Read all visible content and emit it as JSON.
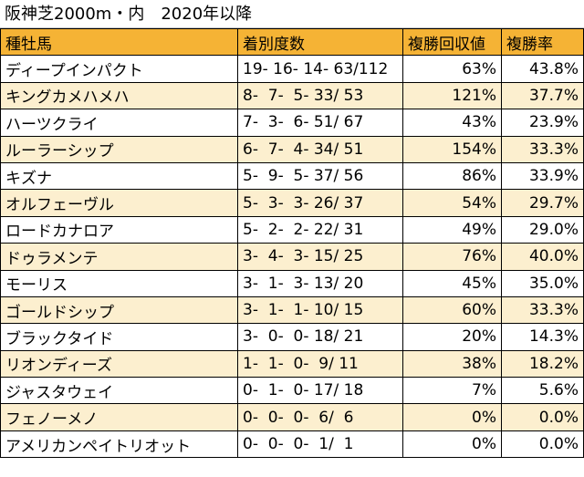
{
  "title": "阪神芝2000m・内　2020年以降",
  "columns": [
    "種牡馬",
    "着別度数",
    "複勝回収値",
    "複勝率"
  ],
  "rows": [
    {
      "sire": "ディープインパクト",
      "record": "19- 16- 14- 63/112",
      "return": "63%",
      "rate": "43.8%"
    },
    {
      "sire": "キングカメハメハ",
      "record": "8-  7-  5- 33/ 53",
      "return": "121%",
      "rate": "37.7%"
    },
    {
      "sire": "ハーツクライ",
      "record": "7-  3-  6- 51/ 67",
      "return": "43%",
      "rate": "23.9%"
    },
    {
      "sire": "ルーラーシップ",
      "record": "6-  7-  4- 34/ 51",
      "return": "154%",
      "rate": "33.3%"
    },
    {
      "sire": "キズナ",
      "record": "5-  9-  5- 37/ 56",
      "return": "86%",
      "rate": "33.9%"
    },
    {
      "sire": "オルフェーヴル",
      "record": "5-  3-  3- 26/ 37",
      "return": "54%",
      "rate": "29.7%"
    },
    {
      "sire": "ロードカナロア",
      "record": "5-  2-  2- 22/ 31",
      "return": "49%",
      "rate": "29.0%"
    },
    {
      "sire": "ドゥラメンテ",
      "record": "3-  4-  3- 15/ 25",
      "return": "76%",
      "rate": "40.0%"
    },
    {
      "sire": "モーリス",
      "record": "3-  1-  3- 13/ 20",
      "return": "45%",
      "rate": "35.0%"
    },
    {
      "sire": "ゴールドシップ",
      "record": "3-  1-  1- 10/ 15",
      "return": "60%",
      "rate": "33.3%"
    },
    {
      "sire": "ブラックタイド",
      "record": "3-  0-  0- 18/ 21",
      "return": "20%",
      "rate": "14.3%"
    },
    {
      "sire": "リオンディーズ",
      "record": "1-  1-  0-  9/ 11",
      "return": "38%",
      "rate": "18.2%"
    },
    {
      "sire": "ジャスタウェイ",
      "record": "0-  1-  0- 17/ 18",
      "return": "7%",
      "rate": "5.6%"
    },
    {
      "sire": "フェノーメノ",
      "record": "0-  0-  0-  6/  6",
      "return": "0%",
      "rate": "0.0%"
    },
    {
      "sire": "アメリカンペイトリオット",
      "record": "0-  0-  0-  1/  1",
      "return": "0%",
      "rate": "0.0%"
    }
  ],
  "colors": {
    "header_bg": "#f5b335",
    "band_bg": "#fcefcf",
    "row_bg": "#ffffff",
    "border": "#000000"
  }
}
